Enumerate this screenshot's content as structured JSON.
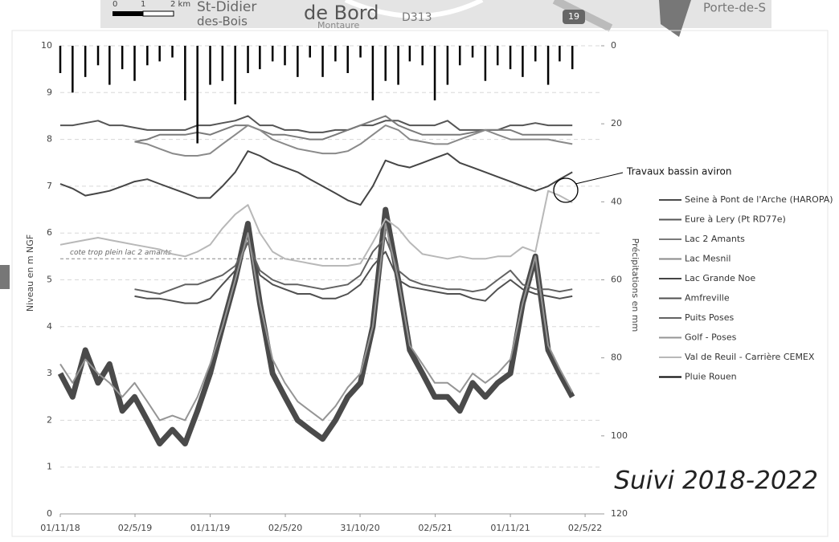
{
  "map_fragments": [
    "St-Didier",
    "des-Bois",
    "de Bord",
    "Montaure",
    "D313",
    "19",
    "Porte-de-S",
    "0",
    "1",
    "2 km"
  ],
  "chart_data": {
    "type": "line",
    "y_label": "Niveau en m NGF",
    "y2_label": "Précipitations en mm",
    "stamp": "Suivi 2018-2022",
    "annotation": "Travaux bassin aviron",
    "reference_line": {
      "value": 5.45,
      "label": "cote trop plein lac 2 amants"
    },
    "legend": "right",
    "grid": true,
    "xlim": [
      "01/11/18",
      "10/6/22"
    ],
    "xticks": [
      "01/11/18",
      "02/5/19",
      "01/11/19",
      "02/5/20",
      "31/10/20",
      "02/5/21",
      "01/11/21",
      "02/5/22"
    ],
    "ylim": [
      0,
      10
    ],
    "yticks": [
      0,
      1,
      2,
      3,
      4,
      5,
      6,
      7,
      8,
      9,
      10
    ],
    "y2lim": [
      120,
      0
    ],
    "y2ticks": [
      0,
      20,
      40,
      60,
      80,
      100,
      120
    ],
    "x": [
      "01/11/18",
      "01/12/18",
      "01/1/19",
      "01/2/19",
      "01/3/19",
      "01/4/19",
      "01/5/19",
      "01/6/19",
      "01/7/19",
      "01/8/19",
      "01/9/19",
      "01/10/19",
      "01/11/19",
      "01/12/19",
      "01/1/20",
      "01/2/20",
      "01/3/20",
      "01/4/20",
      "01/5/20",
      "01/6/20",
      "01/7/20",
      "01/8/20",
      "01/9/20",
      "01/10/20",
      "01/11/20",
      "01/12/20",
      "01/1/21",
      "01/2/21",
      "01/3/21",
      "01/4/21",
      "01/5/21",
      "01/6/21",
      "01/7/21",
      "01/8/21",
      "01/9/21",
      "01/10/21",
      "01/11/21",
      "01/12/21",
      "01/1/22",
      "01/2/22",
      "01/3/22",
      "01/4/22"
    ],
    "series": [
      {
        "name": "Seine à Pont de l'Arche (HAROPA)",
        "color": "#4a4a4a",
        "values": [
          3,
          2.5,
          3.5,
          2.8,
          3.2,
          2.2,
          2.5,
          2,
          1.5,
          1.8,
          1.5,
          2.2,
          3,
          4,
          5,
          6.2,
          4.5,
          3,
          2.5,
          2,
          1.8,
          1.6,
          2,
          2.5,
          2.8,
          4,
          6.5,
          5,
          3.5,
          3,
          2.5,
          2.5,
          2.2,
          2.8,
          2.5,
          2.8,
          3,
          4.5,
          5.5,
          3.5,
          3,
          2.5
        ]
      },
      {
        "name": "Eure à Lery (Pt RD77e)",
        "color": "#555555",
        "values": [
          8.3,
          8.3,
          8.35,
          8.4,
          8.3,
          8.3,
          8.25,
          8.2,
          8.2,
          8.2,
          8.2,
          8.3,
          8.3,
          8.35,
          8.4,
          8.5,
          8.3,
          8.3,
          8.2,
          8.2,
          8.15,
          8.15,
          8.2,
          8.2,
          8.3,
          8.3,
          8.4,
          8.4,
          8.3,
          8.3,
          8.3,
          8.4,
          8.2,
          8.2,
          8.2,
          8.2,
          8.3,
          8.3,
          8.35,
          8.3,
          8.3,
          8.3
        ]
      },
      {
        "name": "Lac 2 Amants",
        "color": "#7a7a7a",
        "values": [
          null,
          null,
          null,
          null,
          null,
          null,
          7.95,
          8,
          8.1,
          8.1,
          8.1,
          8.15,
          8.1,
          8.2,
          8.3,
          8.3,
          8.2,
          8.1,
          8.1,
          8.05,
          8,
          8,
          8.1,
          8.2,
          8.3,
          8.4,
          8.5,
          8.3,
          8.2,
          8.1,
          8.1,
          8.1,
          8.1,
          8.15,
          8.2,
          8.2,
          8.2,
          8.1,
          8.1,
          8.1,
          8.1,
          8.1
        ]
      },
      {
        "name": "Lac Mesnil",
        "color": "#8a8a8a",
        "values": [
          null,
          null,
          null,
          null,
          null,
          null,
          7.95,
          7.9,
          7.8,
          7.7,
          7.65,
          7.65,
          7.7,
          7.9,
          8.1,
          8.3,
          8.2,
          8,
          7.9,
          7.8,
          7.75,
          7.7,
          7.7,
          7.75,
          7.9,
          8.1,
          8.3,
          8.2,
          8,
          7.95,
          7.9,
          7.9,
          8,
          8.1,
          8.2,
          8.1,
          8,
          8,
          8,
          8,
          7.95,
          7.9
        ]
      },
      {
        "name": "Lac Grande Noe",
        "color": "#454545",
        "values": [
          7.05,
          6.95,
          6.8,
          6.85,
          6.9,
          7,
          7.1,
          7.15,
          7.05,
          6.95,
          6.85,
          6.75,
          6.75,
          7,
          7.3,
          7.75,
          7.65,
          7.5,
          7.4,
          7.3,
          7.15,
          7,
          6.85,
          6.7,
          6.6,
          7,
          7.55,
          7.45,
          7.4,
          7.5,
          7.6,
          7.7,
          7.5,
          7.4,
          7.3,
          7.2,
          7.1,
          7,
          6.9,
          7,
          7.15,
          7.3
        ]
      },
      {
        "name": "Amfreville",
        "color": "#505050",
        "values": [
          null,
          null,
          null,
          null,
          null,
          null,
          4.65,
          4.6,
          4.6,
          4.55,
          4.5,
          4.5,
          4.6,
          4.9,
          5.2,
          5.8,
          5.1,
          4.9,
          4.8,
          4.7,
          4.7,
          4.6,
          4.6,
          4.7,
          4.9,
          5.3,
          5.6,
          5,
          4.85,
          4.8,
          4.75,
          4.7,
          4.7,
          4.6,
          4.55,
          4.8,
          5,
          4.8,
          4.7,
          4.65,
          4.6,
          4.65
        ]
      },
      {
        "name": "Puits Poses",
        "color": "#626262",
        "values": [
          null,
          null,
          null,
          null,
          null,
          null,
          4.8,
          4.75,
          4.7,
          4.8,
          4.9,
          4.9,
          5,
          5.1,
          5.3,
          5.8,
          5.2,
          5,
          4.9,
          4.9,
          4.85,
          4.8,
          4.85,
          4.9,
          5.1,
          5.6,
          5.9,
          5.2,
          5,
          4.9,
          4.85,
          4.8,
          4.8,
          4.75,
          4.8,
          5,
          5.2,
          4.9,
          4.8,
          4.8,
          4.75,
          4.8
        ]
      },
      {
        "name": "Golf - Poses",
        "color": "#959595",
        "values": [
          3.2,
          2.8,
          3.3,
          3,
          2.8,
          2.5,
          2.8,
          2.4,
          2,
          2.1,
          2,
          2.5,
          3.2,
          4,
          5,
          6,
          4.5,
          3.3,
          2.8,
          2.4,
          2.2,
          2,
          2.3,
          2.7,
          3,
          4,
          6.2,
          5,
          3.6,
          3.2,
          2.8,
          2.8,
          2.6,
          3,
          2.8,
          3,
          3.3,
          4.5,
          5.5,
          3.6,
          3.1,
          2.6
        ]
      },
      {
        "name": "Val de Reuil - Carrière CEMEX",
        "color": "#b8b8b8",
        "values": [
          5.75,
          5.8,
          5.85,
          5.9,
          5.85,
          5.8,
          5.75,
          5.7,
          5.65,
          5.55,
          5.5,
          5.6,
          5.75,
          6.1,
          6.4,
          6.6,
          6,
          5.6,
          5.45,
          5.4,
          5.35,
          5.3,
          5.3,
          5.3,
          5.35,
          5.8,
          6.3,
          6.1,
          5.8,
          5.55,
          5.5,
          5.45,
          5.5,
          5.45,
          5.45,
          5.5,
          5.5,
          5.7,
          5.6,
          6.9,
          6.8,
          6.65
        ]
      },
      {
        "name": "Pluie Rouen",
        "color": "#000000",
        "axis": "y2",
        "type": "bar",
        "values": [
          7,
          12,
          8,
          5,
          10,
          6,
          9,
          5,
          4,
          3,
          14,
          25,
          10,
          9,
          15,
          7,
          6,
          4,
          5,
          8,
          3,
          8,
          4,
          7,
          3,
          14,
          9,
          10,
          4,
          5,
          14,
          10,
          5,
          3,
          9,
          5,
          6,
          8,
          4,
          10,
          4,
          6
        ]
      }
    ]
  }
}
